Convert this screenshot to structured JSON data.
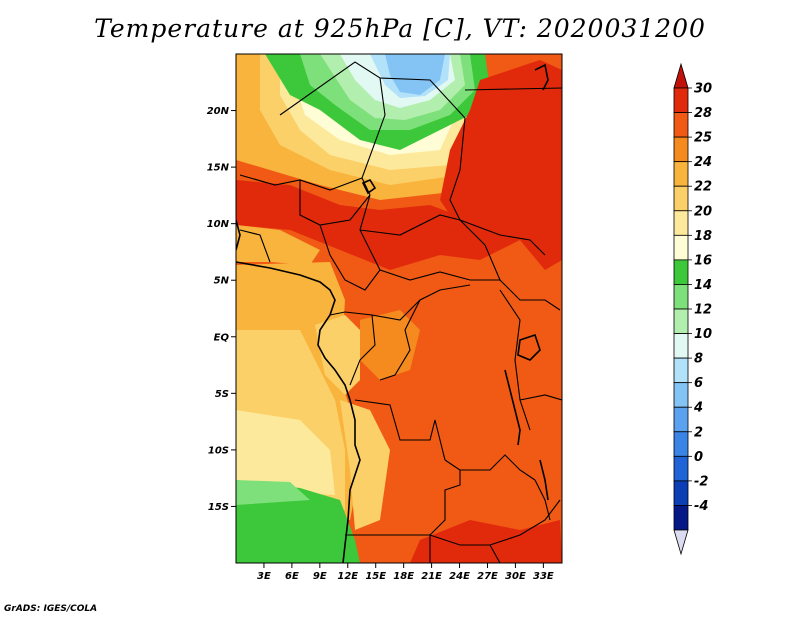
{
  "title": "Temperature at 925hPa [C], VT: 2020031200",
  "credit": "GrADS: IGES/COLA",
  "map": {
    "lon_range": [
      0,
      35
    ],
    "lat_range": [
      -20,
      25
    ],
    "lat_ticks": [
      "20N",
      "15N",
      "10N",
      "5N",
      "EQ",
      "5S",
      "10S",
      "15S"
    ],
    "lat_tick_values": [
      20,
      15,
      10,
      5,
      0,
      -5,
      -10,
      -15
    ],
    "lon_ticks": [
      "3E",
      "6E",
      "9E",
      "12E",
      "15E",
      "18E",
      "21E",
      "24E",
      "27E",
      "30E",
      "33E"
    ],
    "lon_tick_values": [
      3,
      6,
      9,
      12,
      15,
      18,
      21,
      24,
      27,
      30,
      33
    ]
  },
  "colorbar": {
    "labels": [
      "30",
      "28",
      "25",
      "24",
      "22",
      "20",
      "18",
      "16",
      "14",
      "12",
      "10",
      "8",
      "6",
      "4",
      "2",
      "0",
      "-2",
      "-4"
    ],
    "colors": [
      "#e12a0c",
      "#f05a14",
      "#f58a1e",
      "#f8b43c",
      "#fbd068",
      "#fde99c",
      "#fffdd5",
      "#3cc83a",
      "#7ee07a",
      "#b2eeae",
      "#e2f8f2",
      "#b2e2fa",
      "#84c4f5",
      "#5aa2f0",
      "#3a84e6",
      "#1f63d6",
      "#0c3eb4",
      "#061886"
    ],
    "top_arrow_color": "#c01209",
    "bottom_arrow_color": "#dcdcf0"
  }
}
